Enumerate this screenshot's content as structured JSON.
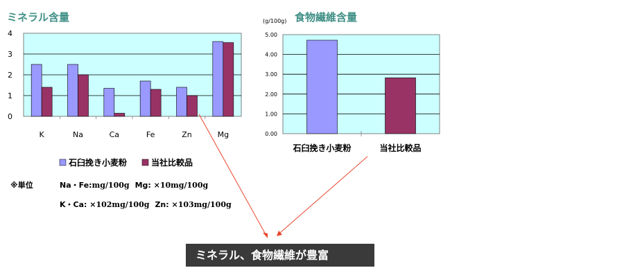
{
  "colors": {
    "series1": "#9999ff",
    "series2": "#993366",
    "plot_bg": "#ccffff",
    "arrow": "#e8452c",
    "banner_bg": "#3a3a3a"
  },
  "chart_data": [
    {
      "type": "bar",
      "title": "ミネラル含量",
      "categories": [
        "K",
        "Na",
        "Ca",
        "Fe",
        "Zn",
        "Mg"
      ],
      "series": [
        {
          "name": "石臼挽き小麦粉",
          "values": [
            2.5,
            2.5,
            1.35,
            1.7,
            1.4,
            3.6
          ]
        },
        {
          "name": "当社比較品",
          "values": [
            1.4,
            2.0,
            0.15,
            1.3,
            1.0,
            3.55
          ]
        }
      ],
      "yticks": [
        "0",
        "1",
        "2",
        "3",
        "4"
      ],
      "ylim": [
        0,
        4
      ],
      "grid": true,
      "legend": "bottom"
    },
    {
      "type": "bar",
      "title": "食物繊維含量",
      "unit": "(g/100g)",
      "categories": [
        "石臼挽き小麦粉",
        "当社比較品"
      ],
      "values": [
        4.72,
        2.82
      ],
      "yticks": [
        "0.00",
        "1.00",
        "2.00",
        "3.00",
        "4.00",
        "5.00"
      ],
      "ylim": [
        0,
        5
      ],
      "grid": true
    }
  ],
  "notes": {
    "label": "※単位",
    "line1_a": "Na・Fe:",
    "line1_b": "mg/100g",
    "line1_c": "Mg: ",
    "line1_d": "×10mg/100g",
    "line2_a": "K・Ca: ",
    "line2_b": "×102mg/100g",
    "line2_c": "Zn: ",
    "line2_d": "×103mg/100g"
  },
  "banner": "ミネラル、食物繊維が豊富"
}
